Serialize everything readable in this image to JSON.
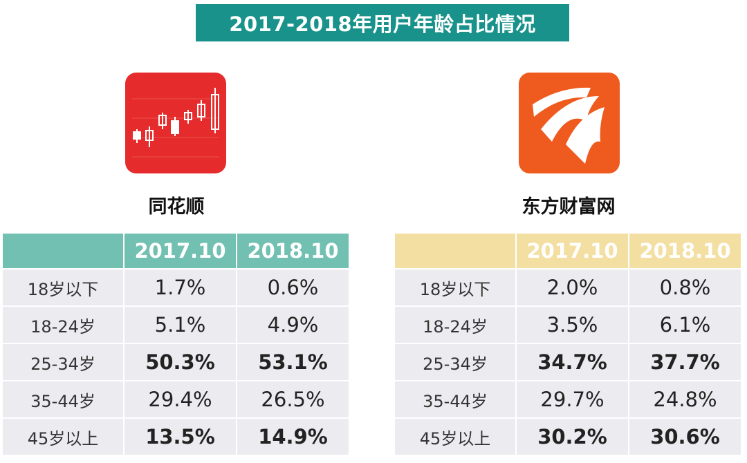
{
  "title": "2017-2018年用户年龄占比情况",
  "colors": {
    "title_bg": "#18928a",
    "left_header": "#72c0b2",
    "right_header": "#f4dfa2",
    "cell_bg": "#ececf0"
  },
  "left": {
    "app_name": "同花顺",
    "logo_icon": "candlestick-chart-icon",
    "columns": [
      "",
      "2017.10",
      "2018.10"
    ],
    "rows": [
      {
        "label": "18岁以下",
        "v2017": "1.7%",
        "v2018": "0.6%"
      },
      {
        "label": "18-24岁",
        "v2017": "5.1%",
        "v2018": "4.9%"
      },
      {
        "label": "25-34岁",
        "v2017": "50.3%",
        "v2018": "53.1%"
      },
      {
        "label": "35-44岁",
        "v2017": "29.4%",
        "v2018": "26.5%"
      },
      {
        "label": "45岁以上",
        "v2017": "13.5%",
        "v2018": "14.9%"
      }
    ]
  },
  "right": {
    "app_name": "东方财富网",
    "logo_icon": "sail-stripes-icon",
    "columns": [
      "",
      "2017.10",
      "2018.10"
    ],
    "rows": [
      {
        "label": "18岁以下",
        "v2017": "2.0%",
        "v2018": "0.8%"
      },
      {
        "label": "18-24岁",
        "v2017": "3.5%",
        "v2018": "6.1%"
      },
      {
        "label": "25-34岁",
        "v2017": "34.7%",
        "v2018": "37.7%"
      },
      {
        "label": "35-44岁",
        "v2017": "29.7%",
        "v2018": "24.8%"
      },
      {
        "label": "45岁以上",
        "v2017": "30.2%",
        "v2018": "30.6%"
      }
    ]
  }
}
